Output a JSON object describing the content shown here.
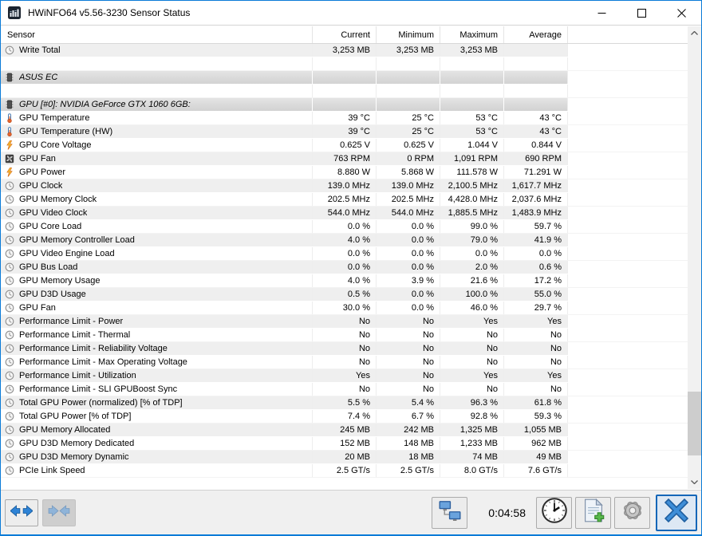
{
  "window": {
    "title": "HWiNFO64 v5.56-3230 Sensor Status"
  },
  "columns": [
    "Sensor",
    "Current",
    "Minimum",
    "Maximum",
    "Average"
  ],
  "rows": [
    {
      "type": "data",
      "icon": "gauge",
      "label": "Write Total",
      "values": [
        "3,253 MB",
        "3,253 MB",
        "3,253 MB",
        ""
      ]
    },
    {
      "type": "spacer",
      "label": ""
    },
    {
      "type": "section",
      "icon": "chip",
      "label": "ASUS EC"
    },
    {
      "type": "spacer",
      "label": ""
    },
    {
      "type": "section",
      "icon": "chip",
      "label": "GPU [#0]: NVIDIA GeForce GTX 1060 6GB:"
    },
    {
      "type": "data",
      "icon": "thermometer",
      "label": "GPU Temperature",
      "values": [
        "39 °C",
        "25 °C",
        "53 °C",
        "43 °C"
      ]
    },
    {
      "type": "data",
      "icon": "thermometer",
      "label": "GPU Temperature (HW)",
      "values": [
        "39 °C",
        "25 °C",
        "53 °C",
        "43 °C"
      ]
    },
    {
      "type": "data",
      "icon": "bolt",
      "label": "GPU Core Voltage",
      "values": [
        "0.625 V",
        "0.625 V",
        "1.044 V",
        "0.844 V"
      ]
    },
    {
      "type": "data",
      "icon": "fan",
      "label": "GPU Fan",
      "values": [
        "763 RPM",
        "0 RPM",
        "1,091 RPM",
        "690 RPM"
      ]
    },
    {
      "type": "data",
      "icon": "bolt",
      "label": "GPU Power",
      "values": [
        "8.880 W",
        "5.868 W",
        "111.578 W",
        "71.291 W"
      ]
    },
    {
      "type": "data",
      "icon": "gauge",
      "label": "GPU Clock",
      "values": [
        "139.0 MHz",
        "139.0 MHz",
        "2,100.5 MHz",
        "1,617.7 MHz"
      ]
    },
    {
      "type": "data",
      "icon": "gauge",
      "label": "GPU Memory Clock",
      "values": [
        "202.5 MHz",
        "202.5 MHz",
        "4,428.0 MHz",
        "2,037.6 MHz"
      ]
    },
    {
      "type": "data",
      "icon": "gauge",
      "label": "GPU Video Clock",
      "values": [
        "544.0 MHz",
        "544.0 MHz",
        "1,885.5 MHz",
        "1,483.9 MHz"
      ]
    },
    {
      "type": "data",
      "icon": "gauge",
      "label": "GPU Core Load",
      "values": [
        "0.0 %",
        "0.0 %",
        "99.0 %",
        "59.7 %"
      ]
    },
    {
      "type": "data",
      "icon": "gauge",
      "label": "GPU Memory Controller Load",
      "values": [
        "4.0 %",
        "0.0 %",
        "79.0 %",
        "41.9 %"
      ]
    },
    {
      "type": "data",
      "icon": "gauge",
      "label": "GPU Video Engine Load",
      "values": [
        "0.0 %",
        "0.0 %",
        "0.0 %",
        "0.0 %"
      ]
    },
    {
      "type": "data",
      "icon": "gauge",
      "label": "GPU Bus Load",
      "values": [
        "0.0 %",
        "0.0 %",
        "2.0 %",
        "0.6 %"
      ]
    },
    {
      "type": "data",
      "icon": "gauge",
      "label": "GPU Memory Usage",
      "values": [
        "4.0 %",
        "3.9 %",
        "21.6 %",
        "17.2 %"
      ]
    },
    {
      "type": "data",
      "icon": "gauge",
      "label": "GPU D3D Usage",
      "values": [
        "0.5 %",
        "0.0 %",
        "100.0 %",
        "55.0 %"
      ]
    },
    {
      "type": "data",
      "icon": "gauge",
      "label": "GPU Fan",
      "values": [
        "30.0 %",
        "0.0 %",
        "46.0 %",
        "29.7 %"
      ]
    },
    {
      "type": "data",
      "icon": "gauge",
      "label": "Performance Limit - Power",
      "values": [
        "No",
        "No",
        "Yes",
        "Yes"
      ]
    },
    {
      "type": "data",
      "icon": "gauge",
      "label": "Performance Limit - Thermal",
      "values": [
        "No",
        "No",
        "No",
        "No"
      ]
    },
    {
      "type": "data",
      "icon": "gauge",
      "label": "Performance Limit - Reliability Voltage",
      "values": [
        "No",
        "No",
        "No",
        "No"
      ]
    },
    {
      "type": "data",
      "icon": "gauge",
      "label": "Performance Limit - Max Operating Voltage",
      "values": [
        "No",
        "No",
        "No",
        "No"
      ]
    },
    {
      "type": "data",
      "icon": "gauge",
      "label": "Performance Limit - Utilization",
      "values": [
        "Yes",
        "No",
        "Yes",
        "Yes"
      ]
    },
    {
      "type": "data",
      "icon": "gauge",
      "label": "Performance Limit - SLI GPUBoost Sync",
      "values": [
        "No",
        "No",
        "No",
        "No"
      ]
    },
    {
      "type": "data",
      "icon": "gauge",
      "label": "Total GPU Power (normalized) [% of TDP]",
      "values": [
        "5.5 %",
        "5.4 %",
        "96.3 %",
        "61.8 %"
      ]
    },
    {
      "type": "data",
      "icon": "gauge",
      "label": "Total GPU Power [% of TDP]",
      "values": [
        "7.4 %",
        "6.7 %",
        "92.8 %",
        "59.3 %"
      ]
    },
    {
      "type": "data",
      "icon": "gauge",
      "label": "GPU Memory Allocated",
      "values": [
        "245 MB",
        "242 MB",
        "1,325 MB",
        "1,055 MB"
      ]
    },
    {
      "type": "data",
      "icon": "gauge",
      "label": "GPU D3D Memory Dedicated",
      "values": [
        "152 MB",
        "148 MB",
        "1,233 MB",
        "962 MB"
      ]
    },
    {
      "type": "data",
      "icon": "gauge",
      "label": "GPU D3D Memory Dynamic",
      "values": [
        "20 MB",
        "18 MB",
        "74 MB",
        "49 MB"
      ]
    },
    {
      "type": "data",
      "icon": "gauge",
      "label": "PCIe Link Speed",
      "values": [
        "2.5 GT/s",
        "2.5 GT/s",
        "8.0 GT/s",
        "7.6 GT/s"
      ]
    }
  ],
  "toolbar": {
    "timer": "0:04:58",
    "icons": [
      "expand-arrows-icon",
      "collapse-arrows-icon",
      "network-monitors-icon",
      "clock-icon",
      "report-add-icon",
      "settings-gear-icon",
      "close-x-icon"
    ]
  },
  "colors": {
    "accent_border": "#0a7bd7",
    "row_stripe": "#efefef",
    "section_bg": "#d9d9d9",
    "close_x_blue": "#3e8ed8",
    "bolt_yellow": "#ffcc33"
  }
}
